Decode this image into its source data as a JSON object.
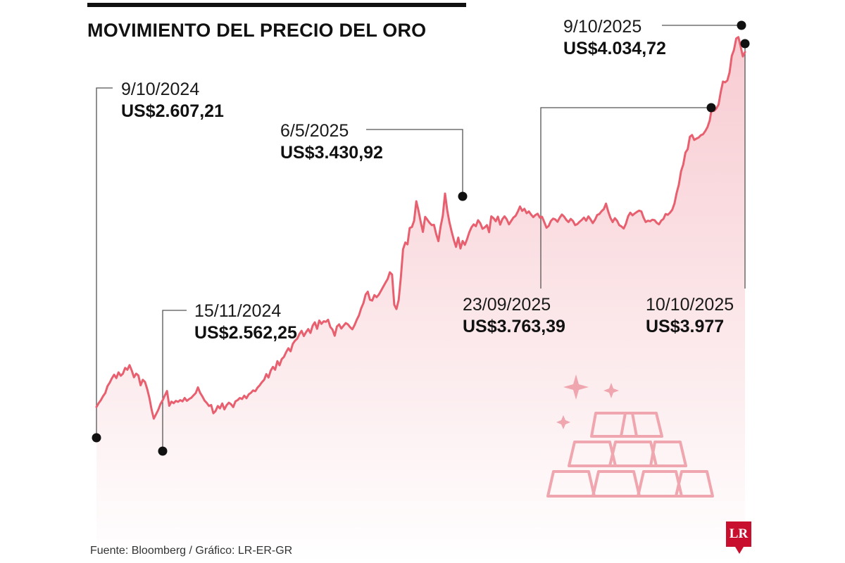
{
  "title": "MOVIMIENTO DEL PRECIO DEL ORO",
  "source": "Fuente: Bloomberg / Gráfico: LR-ER-GR",
  "logo_text": "LR",
  "colors": {
    "line": "#e8606f",
    "area_top": "#f7c9cf",
    "area_bottom": "#ffffff",
    "ink": "#111111",
    "logo": "#c8102e",
    "gold_icon": "#f0a6ae"
  },
  "icon": "gold-bars-icon",
  "chart_data": {
    "type": "area",
    "ylim": [
      2380,
      4080
    ],
    "grid": false,
    "legend": "none",
    "series": [
      {
        "values": [
          2607.21,
          2622,
          2634,
          2649,
          2661,
          2688,
          2701,
          2718,
          2732,
          2719,
          2741,
          2728,
          2736,
          2758,
          2751,
          2769,
          2748,
          2722,
          2736,
          2729,
          2691,
          2712,
          2704,
          2676,
          2642,
          2597,
          2562.25,
          2579,
          2596,
          2618,
          2633,
          2652,
          2669,
          2612,
          2628,
          2622,
          2631,
          2627,
          2634,
          2629,
          2642,
          2631,
          2638,
          2643,
          2652,
          2661,
          2683,
          2662,
          2648,
          2632,
          2623,
          2611,
          2615,
          2583,
          2592,
          2611,
          2602,
          2621,
          2598,
          2614,
          2624,
          2618,
          2607,
          2629,
          2634,
          2642,
          2638,
          2651,
          2641,
          2656,
          2662,
          2671,
          2668,
          2682,
          2691,
          2703,
          2712,
          2734,
          2721,
          2748,
          2762,
          2751,
          2784,
          2768,
          2792,
          2801,
          2819,
          2834,
          2822,
          2851,
          2863,
          2871,
          2889,
          2901,
          2881,
          2896,
          2908,
          2893,
          2921,
          2934,
          2909,
          2941,
          2928,
          2938,
          2936,
          2944,
          2916,
          2906,
          2882,
          2918,
          2926,
          2910,
          2921,
          2931,
          2926,
          2915,
          2907,
          2923,
          2944,
          2961,
          2988,
          3008,
          3041,
          3052,
          3021,
          3018,
          3039,
          3031,
          3041,
          3056,
          3071,
          3087,
          3101,
          3127,
          3118,
          3002,
          2985,
          3021,
          3109,
          3216,
          3242,
          3235,
          3298,
          3302,
          3326,
          3401,
          3364,
          3321,
          3283,
          3341,
          3330,
          3318,
          3309,
          3310,
          3275,
          3247,
          3303,
          3345,
          3430.92,
          3367,
          3321,
          3284,
          3252,
          3225,
          3261,
          3219,
          3248,
          3233,
          3255,
          3281,
          3301,
          3312,
          3305,
          3328,
          3316,
          3295,
          3300,
          3309,
          3282,
          3343,
          3336,
          3324,
          3342,
          3311,
          3332,
          3343,
          3331,
          3312,
          3325,
          3338,
          3345,
          3361,
          3381,
          3364,
          3372,
          3355,
          3362,
          3350,
          3340,
          3348,
          3353,
          3338,
          3341,
          3321,
          3299,
          3306,
          3325,
          3334,
          3331,
          3322,
          3338,
          3350,
          3342,
          3329,
          3321,
          3333,
          3325,
          3309,
          3313,
          3322,
          3329,
          3338,
          3326,
          3343,
          3331,
          3317,
          3330,
          3348,
          3352,
          3363,
          3371,
          3392,
          3361,
          3337,
          3321,
          3336,
          3326,
          3309,
          3304,
          3296,
          3314,
          3343,
          3357,
          3347,
          3354,
          3360,
          3365,
          3362,
          3338,
          3321,
          3326,
          3324,
          3330,
          3328,
          3318,
          3312,
          3326,
          3333,
          3352,
          3349,
          3357,
          3368,
          3392,
          3433,
          3465,
          3517,
          3543,
          3589,
          3602,
          3650,
          3657,
          3638,
          3643,
          3647,
          3656,
          3660,
          3672,
          3687,
          3713,
          3763.39,
          3750,
          3759,
          3774,
          3822,
          3863,
          3860,
          3867,
          3899,
          3962,
          3985,
          4029,
          4034.72,
          4000,
          3960,
          3977
        ]
      }
    ],
    "annotations": [
      {
        "date": "9/10/2024",
        "value": "US$2.607,21"
      },
      {
        "date": "15/11/2024",
        "value": "US$2.562,25"
      },
      {
        "date": "6/5/2025",
        "value": "US$3.430,92"
      },
      {
        "date": "23/09/2025",
        "value": "US$3.763,39"
      },
      {
        "date": "9/10/2025",
        "value": "US$4.034,72"
      },
      {
        "date": "10/10/2025",
        "value": "US$3.977"
      }
    ]
  }
}
